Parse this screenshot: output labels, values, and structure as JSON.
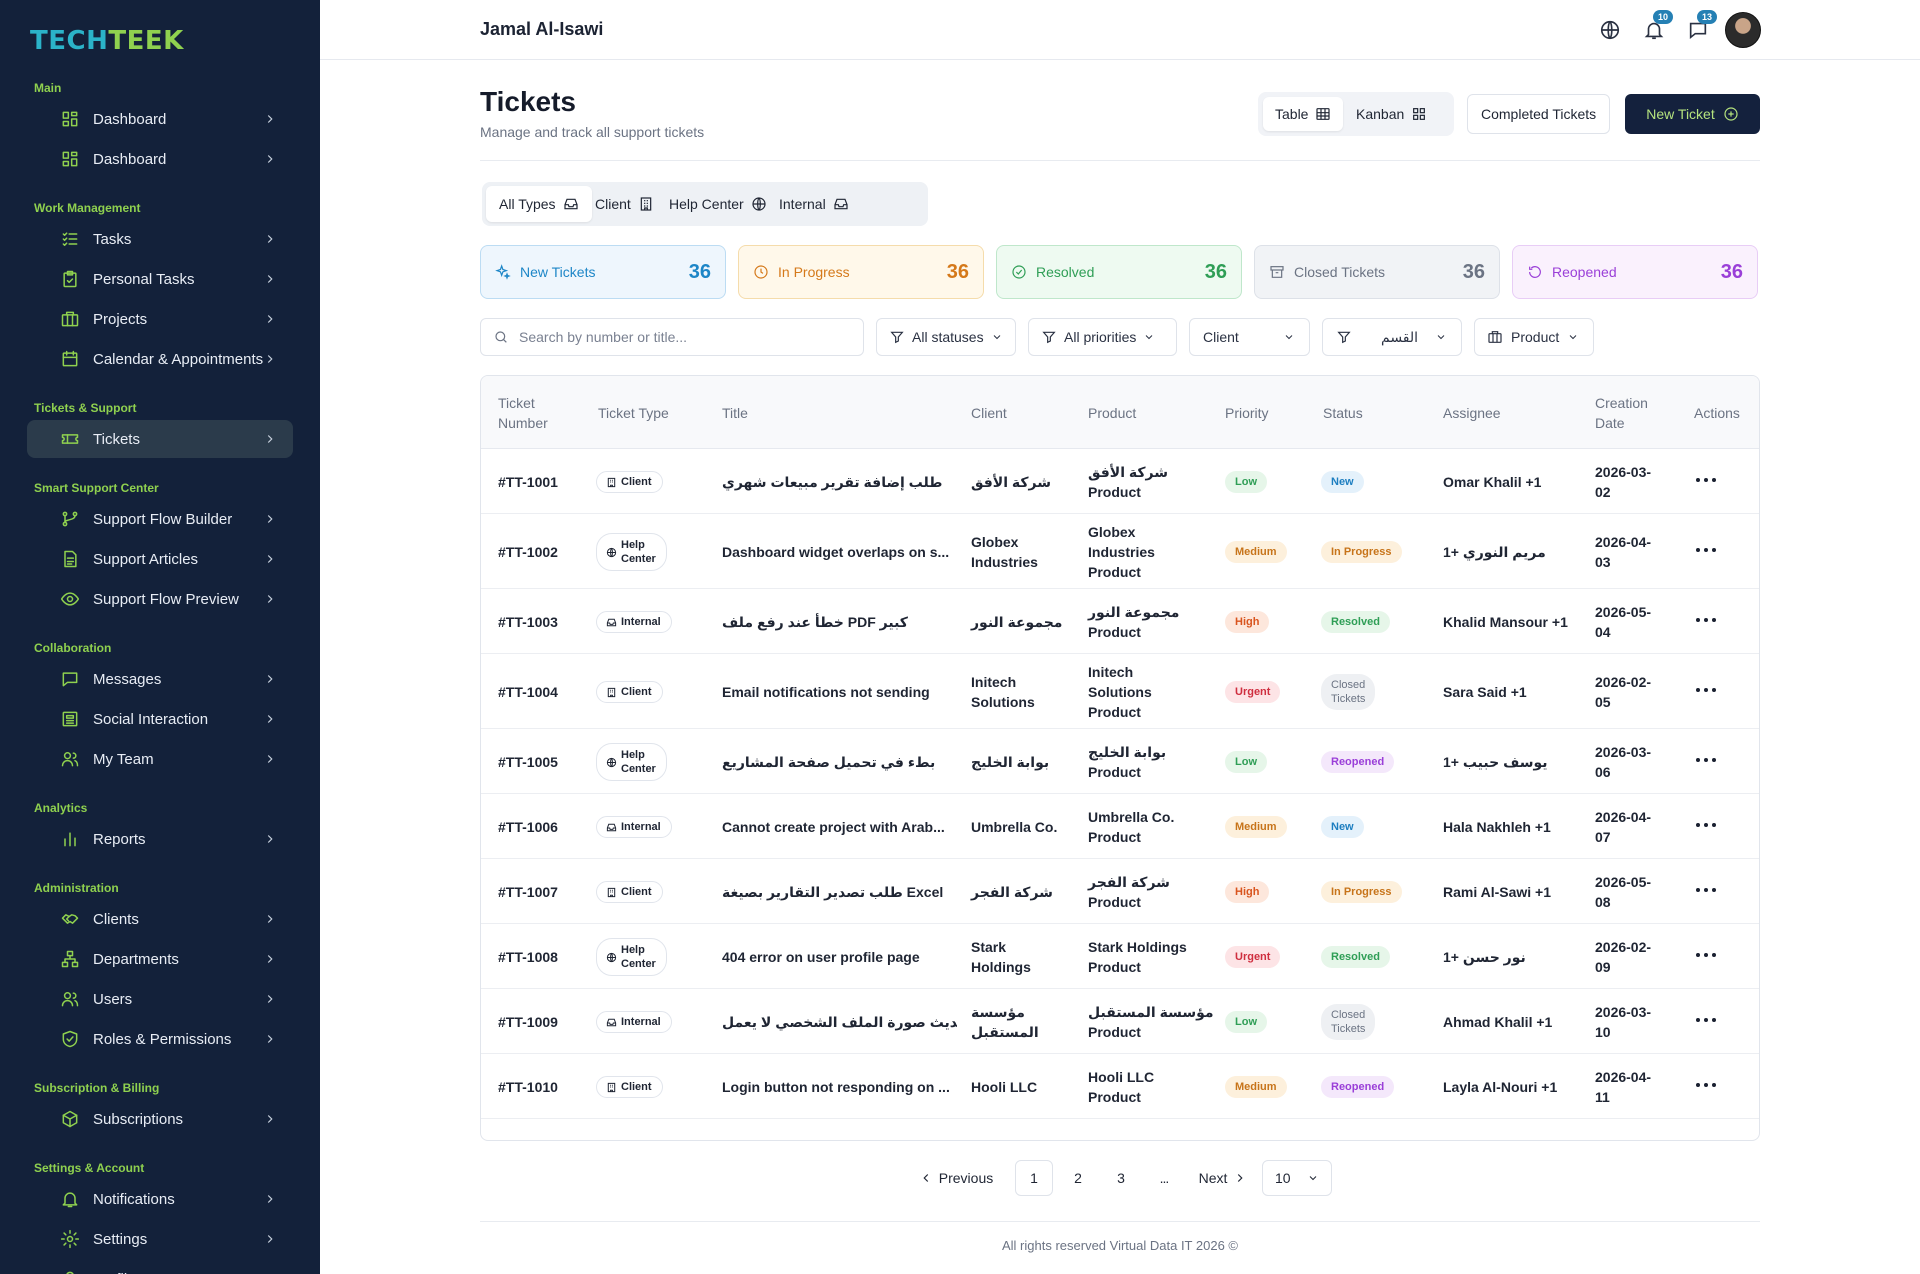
{
  "brand": {
    "part1": "TECH",
    "part2": "TEEK"
  },
  "sidebar": {
    "sections": [
      {
        "title": "Main",
        "items": [
          {
            "label": "Dashboard",
            "icon": "dashboard-icon"
          },
          {
            "label": "Dashboard",
            "icon": "dashboard-icon"
          }
        ]
      },
      {
        "title": "Work Management",
        "items": [
          {
            "label": "Tasks",
            "icon": "tasks-icon"
          },
          {
            "label": "Personal Tasks",
            "icon": "clipboard-icon"
          },
          {
            "label": "Projects",
            "icon": "briefcase-icon"
          },
          {
            "label": "Calendar & Appointments",
            "icon": "calendar-icon"
          }
        ]
      },
      {
        "title": "Tickets & Support",
        "items": [
          {
            "label": "Tickets",
            "icon": "ticket-icon",
            "active": true
          }
        ]
      },
      {
        "title": "Smart Support Center",
        "items": [
          {
            "label": "Support Flow Builder",
            "icon": "flow-icon"
          },
          {
            "label": "Support Articles",
            "icon": "document-icon"
          },
          {
            "label": "Support Flow Preview",
            "icon": "eye-icon"
          }
        ]
      },
      {
        "title": "Collaboration",
        "items": [
          {
            "label": "Messages",
            "icon": "message-icon"
          },
          {
            "label": "Social Interaction",
            "icon": "newspaper-icon"
          },
          {
            "label": "My Team",
            "icon": "team-icon"
          }
        ]
      },
      {
        "title": "Analytics",
        "items": [
          {
            "label": "Reports",
            "icon": "bar-chart-icon"
          }
        ]
      },
      {
        "title": "Administration",
        "items": [
          {
            "label": "Clients",
            "icon": "handshake-icon"
          },
          {
            "label": "Departments",
            "icon": "org-chart-icon"
          },
          {
            "label": "Users",
            "icon": "users-icon"
          },
          {
            "label": "Roles & Permissions",
            "icon": "shield-icon"
          }
        ]
      },
      {
        "title": "Subscription & Billing",
        "items": [
          {
            "label": "Subscriptions",
            "icon": "package-icon"
          }
        ]
      },
      {
        "title": "Settings & Account",
        "items": [
          {
            "label": "Notifications",
            "icon": "bell-icon"
          },
          {
            "label": "Settings",
            "icon": "gear-icon"
          },
          {
            "label": "Profile",
            "icon": "user-icon"
          }
        ]
      }
    ]
  },
  "header": {
    "user_name": "Jamal Al-Isawi",
    "notifications_count": "10",
    "messages_count": "13"
  },
  "page": {
    "title": "Tickets",
    "subtitle": "Manage and track all support tickets",
    "view_table": "Table",
    "view_kanban": "Kanban",
    "completed_button": "Completed Tickets",
    "new_ticket_button": "New Ticket"
  },
  "type_tabs": [
    "All Types",
    "Client",
    "Help Center",
    "Internal"
  ],
  "stats": [
    {
      "label": "New Tickets",
      "count": "36",
      "color": "#1d86c7"
    },
    {
      "label": "In Progress",
      "count": "36",
      "color": "#d5791a"
    },
    {
      "label": "Resolved",
      "count": "36",
      "color": "#2f9e56"
    },
    {
      "label": "Closed Tickets",
      "count": "36",
      "color": "#6b7383"
    },
    {
      "label": "Reopened",
      "count": "36",
      "color": "#9a3fd8"
    }
  ],
  "filters": {
    "search_placeholder": "Search by number or title...",
    "status": "All statuses",
    "priority": "All priorities",
    "client": "Client",
    "department": "القسم",
    "product": "Product"
  },
  "table": {
    "headers": {
      "number": [
        "Ticket",
        "Number"
      ],
      "type": "Ticket Type",
      "title": "Title",
      "client": "Client",
      "product": "Product",
      "priority": "Priority",
      "status": "Status",
      "assignee": "Assignee",
      "date": [
        "Creation",
        "Date"
      ],
      "actions": "Actions"
    },
    "rows": [
      {
        "number": "#TT-1001",
        "type": [
          "Client"
        ],
        "title": "طلب إضافة تقرير مبيعات شهري",
        "client": [
          "شركة الأفق"
        ],
        "product": [
          "شركة الأفق",
          "Product"
        ],
        "priority": "Low",
        "status": [
          "New"
        ],
        "assignee": "Omar Khalil +1",
        "date": [
          "2026-03-",
          "02"
        ]
      },
      {
        "number": "#TT-1002",
        "type": [
          "Help",
          "Center"
        ],
        "title": "Dashboard widget overlaps on s...",
        "client": [
          "Globex",
          "Industries"
        ],
        "product": [
          "Globex",
          "Industries",
          "Product"
        ],
        "priority": "Medium",
        "status": [
          "In Progress"
        ],
        "assignee": "مريم النوري +1",
        "date": [
          "2026-04-",
          "03"
        ]
      },
      {
        "number": "#TT-1003",
        "type": [
          "Internal"
        ],
        "title": "خطأ عند رفع ملف PDF كبير",
        "client": [
          "مجموعة النور"
        ],
        "product": [
          "مجموعة النور",
          "Product"
        ],
        "priority": "High",
        "status": [
          "Resolved"
        ],
        "assignee": "Khalid Mansour +1",
        "date": [
          "2026-05-",
          "04"
        ]
      },
      {
        "number": "#TT-1004",
        "type": [
          "Client"
        ],
        "title": "Email notifications not sending",
        "client": [
          "Initech",
          "Solutions"
        ],
        "product": [
          "Initech",
          "Solutions",
          "Product"
        ],
        "priority": "Urgent",
        "status": [
          "Closed",
          "Tickets"
        ],
        "assignee": "Sara Said +1",
        "date": [
          "2026-02-",
          "05"
        ]
      },
      {
        "number": "#TT-1005",
        "type": [
          "Help",
          "Center"
        ],
        "title": "بطء في تحميل صفحة المشاريع",
        "client": [
          "بوابة الخليج"
        ],
        "product": [
          "بوابة الخليج",
          "Product"
        ],
        "priority": "Low",
        "status": [
          "Reopened"
        ],
        "assignee": "يوسف حبيب +1",
        "date": [
          "2026-03-",
          "06"
        ]
      },
      {
        "number": "#TT-1006",
        "type": [
          "Internal"
        ],
        "title": "Cannot create project with Arab...",
        "client": [
          "Umbrella Co."
        ],
        "product": [
          "Umbrella Co.",
          "Product"
        ],
        "priority": "Medium",
        "status": [
          "New"
        ],
        "assignee": "Hala Nakhleh +1",
        "date": [
          "2026-04-",
          "07"
        ]
      },
      {
        "number": "#TT-1007",
        "type": [
          "Client"
        ],
        "title": "طلب تصدير التقارير بصيغة Excel",
        "client": [
          "شركة الفجر"
        ],
        "product": [
          "شركة الفجر",
          "Product"
        ],
        "priority": "High",
        "status": [
          "In Progress"
        ],
        "assignee": "Rami Al-Sawi +1",
        "date": [
          "2026-05-",
          "08"
        ]
      },
      {
        "number": "#TT-1008",
        "type": [
          "Help",
          "Center"
        ],
        "title": "404 error on user profile page",
        "client": [
          "Stark",
          "Holdings"
        ],
        "product": [
          "Stark Holdings",
          "Product"
        ],
        "priority": "Urgent",
        "status": [
          "Resolved"
        ],
        "assignee": "نور حسن +1",
        "date": [
          "2026-02-",
          "09"
        ]
      },
      {
        "number": "#TT-1009",
        "type": [
          "Internal"
        ],
        "title": "تحديث صورة الملف الشخصي لا يعمل",
        "client": [
          "مؤسسة",
          "المستقبل"
        ],
        "product": [
          "مؤسسة المستقبل",
          "Product"
        ],
        "priority": "Low",
        "status": [
          "Closed",
          "Tickets"
        ],
        "assignee": "Ahmad Khalil +1",
        "date": [
          "2026-03-",
          "10"
        ]
      },
      {
        "number": "#TT-1010",
        "type": [
          "Client"
        ],
        "title": "Login button not responding on ...",
        "client": [
          "Hooli LLC"
        ],
        "product": [
          "Hooli LLC",
          "Product"
        ],
        "priority": "Medium",
        "status": [
          "Reopened"
        ],
        "assignee": "Layla Al-Nouri +1",
        "date": [
          "2026-04-",
          "11"
        ]
      }
    ]
  },
  "pagination": {
    "previous": "Previous",
    "pages": [
      "1",
      "2",
      "3"
    ],
    "ellipsis": "...",
    "next": "Next",
    "page_size": "10"
  },
  "footer": "All rights reserved Virtual Data IT 2026 ©",
  "colors": {
    "sidebar_bg": "#13213a",
    "accent_green": "#8fd14f",
    "accent_cyan": "#2bb3c9",
    "primary_button": "#14213d"
  }
}
